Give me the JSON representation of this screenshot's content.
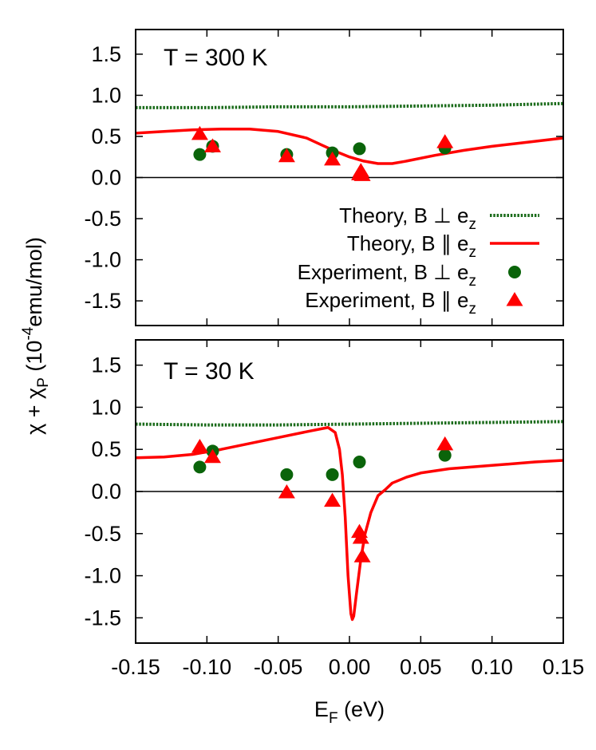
{
  "chart_data": {
    "type": "scatter",
    "shared_x": {
      "label_main": "E",
      "label_sub": "F",
      "label_rest": " (eV)",
      "range": [
        -0.15,
        0.15
      ],
      "ticks": [
        -0.15,
        -0.1,
        -0.05,
        0.0,
        0.05,
        0.1,
        0.15
      ],
      "tick_labels": [
        "-0.15",
        "-0.10",
        "-0.05",
        "0.00",
        "0.05",
        "0.10",
        "0.15"
      ]
    },
    "shared_y": {
      "label_parts": [
        "χ + χ",
        "P",
        " (10",
        "-4",
        "emu/mol)"
      ],
      "range": [
        -1.8,
        1.8
      ],
      "ticks": [
        -1.5,
        -1.0,
        -0.5,
        0.0,
        0.5,
        1.0,
        1.5
      ],
      "tick_labels": [
        "-1.5",
        "-1.0",
        "-0.5",
        "0.0",
        "0.5",
        "1.0",
        "1.5"
      ]
    },
    "colors": {
      "theory_perp": "#1a6b1a",
      "theory_par": "#ff0000",
      "exp_perp": "#0a640a",
      "exp_par": "#ff0000",
      "zero_line": "#000000"
    },
    "legend": {
      "placement": "right",
      "entries": [
        {
          "key": "theory_perp",
          "label": "Theory, B ⊥ e",
          "sub": "z",
          "marker": "dotted-line"
        },
        {
          "key": "theory_par",
          "label": "Theory, B ∥ e",
          "sub": "z",
          "marker": "solid-line"
        },
        {
          "key": "exp_perp",
          "label": "Experiment, B ⊥ e",
          "sub": "z",
          "marker": "circle"
        },
        {
          "key": "exp_par",
          "label": "Experiment, B ∥ e",
          "sub": "z",
          "marker": "triangle"
        }
      ]
    },
    "panels": [
      {
        "label": "T = 300 K",
        "series": {
          "theory_perp": {
            "x": [
              -0.15,
              -0.1,
              -0.05,
              0.0,
              0.05,
              0.1,
              0.15
            ],
            "y": [
              0.85,
              0.85,
              0.86,
              0.86,
              0.87,
              0.88,
              0.9
            ]
          },
          "theory_par": {
            "x": [
              -0.15,
              -0.13,
              -0.11,
              -0.09,
              -0.07,
              -0.05,
              -0.03,
              -0.02,
              -0.01,
              0.0,
              0.01,
              0.02,
              0.03,
              0.04,
              0.06,
              0.08,
              0.1,
              0.12,
              0.15
            ],
            "y": [
              0.54,
              0.56,
              0.58,
              0.59,
              0.59,
              0.56,
              0.48,
              0.4,
              0.32,
              0.25,
              0.2,
              0.17,
              0.17,
              0.2,
              0.27,
              0.33,
              0.38,
              0.42,
              0.48
            ]
          },
          "exp_perp": {
            "x": [
              -0.105,
              -0.096,
              -0.044,
              -0.012,
              0.007,
              0.067
            ],
            "y": [
              0.28,
              0.38,
              0.28,
              0.3,
              0.35,
              0.36
            ]
          },
          "exp_par": {
            "x": [
              -0.105,
              -0.096,
              -0.044,
              -0.012,
              0.007,
              0.008,
              0.009,
              0.067
            ],
            "y": [
              0.53,
              0.38,
              0.26,
              0.22,
              0.04,
              0.08,
              0.03,
              0.43
            ]
          }
        }
      },
      {
        "label": "T = 30 K",
        "series": {
          "theory_perp": {
            "x": [
              -0.15,
              -0.1,
              -0.05,
              0.0,
              0.05,
              0.1,
              0.15
            ],
            "y": [
              0.8,
              0.79,
              0.79,
              0.8,
              0.81,
              0.82,
              0.83
            ]
          },
          "theory_par": {
            "x": [
              -0.15,
              -0.13,
              -0.11,
              -0.09,
              -0.07,
              -0.05,
              -0.03,
              -0.015,
              -0.01,
              -0.007,
              -0.005,
              -0.003,
              -0.001,
              0.001,
              0.002,
              0.003,
              0.005,
              0.008,
              0.011,
              0.015,
              0.02,
              0.025,
              0.03,
              0.04,
              0.05,
              0.07,
              0.1,
              0.13,
              0.15
            ],
            "y": [
              0.4,
              0.41,
              0.44,
              0.5,
              0.57,
              0.64,
              0.71,
              0.76,
              0.7,
              0.5,
              0.2,
              -0.3,
              -1.0,
              -1.45,
              -1.52,
              -1.48,
              -1.2,
              -0.8,
              -0.5,
              -0.25,
              -0.05,
              0.02,
              0.1,
              0.17,
              0.22,
              0.27,
              0.31,
              0.35,
              0.37
            ]
          },
          "exp_perp": {
            "x": [
              -0.105,
              -0.096,
              -0.044,
              -0.012,
              0.007,
              0.067
            ],
            "y": [
              0.29,
              0.48,
              0.2,
              0.2,
              0.35,
              0.43
            ]
          },
          "exp_par": {
            "x": [
              -0.105,
              -0.096,
              -0.044,
              -0.012,
              0.007,
              0.008,
              0.009,
              0.067
            ],
            "y": [
              0.53,
              0.41,
              -0.01,
              -0.11,
              -0.48,
              -0.55,
              -0.77,
              0.56
            ]
          }
        }
      }
    ]
  }
}
